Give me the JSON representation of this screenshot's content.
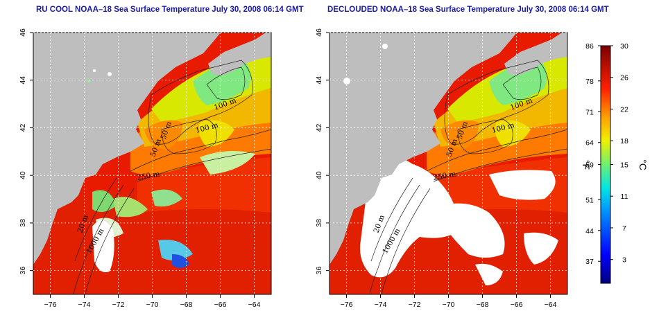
{
  "panels": [
    {
      "title": "RU COOL NOAA–18 Sea Surface Temperature July 30, 2008 06:14 GMT",
      "type": "raw"
    },
    {
      "title": "DECLOUDED NOAA–18 Sea Surface Temperature July 30, 2008 06:14 GMT",
      "type": "declouded"
    }
  ],
  "map": {
    "lon_ticks": [
      "−76",
      "−74",
      "−72",
      "−70",
      "−68",
      "−66",
      "−64"
    ],
    "lat_ticks": [
      "36",
      "38",
      "40",
      "42",
      "44",
      "46"
    ],
    "lon_range": [
      -77,
      -63
    ],
    "lat_range": [
      35,
      46
    ],
    "contour_labels": [
      "100 m",
      "100 m",
      "50 m",
      "50 m",
      "250 m",
      "20 m",
      "1000 m"
    ],
    "land_color": "#bebebe"
  },
  "colorbar": {
    "fahrenheit_ticks": [
      "86",
      "78",
      "71",
      "64",
      "59",
      "51",
      "44",
      "37"
    ],
    "celsius_ticks": [
      "30",
      "26",
      "22",
      "18",
      "15",
      "11",
      "7",
      "3"
    ],
    "left_unit": "°F",
    "right_unit": "°C",
    "range_c": [
      0,
      30
    ],
    "colors": [
      "#000080",
      "#0000ff",
      "#0080ff",
      "#00ffff",
      "#80ff80",
      "#ffff00",
      "#ff8000",
      "#ff0000",
      "#800000"
    ]
  }
}
